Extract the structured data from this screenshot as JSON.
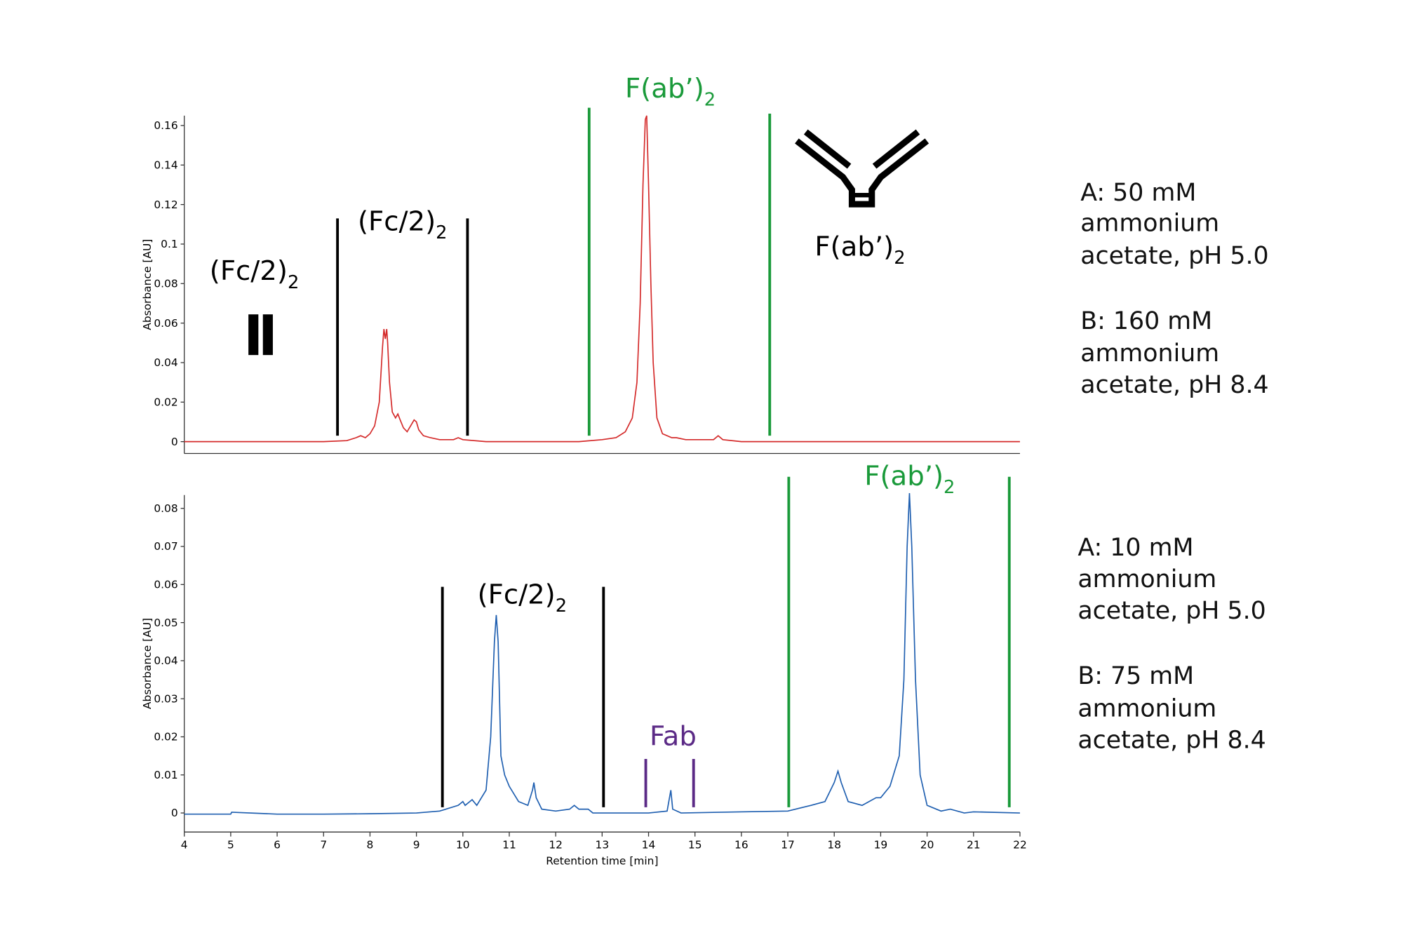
{
  "chart_data": [
    {
      "type": "line",
      "y_label": "Absorbance [AU]",
      "color": "#d42a2a",
      "xlim": [
        4,
        22
      ],
      "ylim": [
        -0.006,
        0.165
      ],
      "yticks": [
        0,
        0.02,
        0.04,
        0.06,
        0.08,
        0.1,
        0.12,
        0.14,
        0.16
      ],
      "x": [
        4,
        5,
        6,
        7,
        7.5,
        7.7,
        7.8,
        7.9,
        8.0,
        8.1,
        8.2,
        8.27,
        8.3,
        8.33,
        8.36,
        8.38,
        8.42,
        8.48,
        8.55,
        8.6,
        8.65,
        8.72,
        8.8,
        8.9,
        8.95,
        9.0,
        9.05,
        9.15,
        9.3,
        9.5,
        9.8,
        9.9,
        10.0,
        10.5,
        11,
        11.5,
        12,
        12.5,
        13,
        13.3,
        13.5,
        13.65,
        13.75,
        13.82,
        13.88,
        13.93,
        13.96,
        14.0,
        14.05,
        14.1,
        14.18,
        14.3,
        14.5,
        14.6,
        14.8,
        15.0,
        15.4,
        15.5,
        15.6,
        16,
        17,
        18,
        19,
        20,
        21,
        22
      ],
      "values": [
        0,
        0,
        0,
        0,
        0.0005,
        0.002,
        0.003,
        0.002,
        0.004,
        0.008,
        0.02,
        0.048,
        0.057,
        0.052,
        0.057,
        0.05,
        0.03,
        0.015,
        0.012,
        0.014,
        0.011,
        0.007,
        0.005,
        0.009,
        0.011,
        0.01,
        0.006,
        0.003,
        0.002,
        0.001,
        0.001,
        0.002,
        0.001,
        0,
        0,
        0,
        0,
        0,
        0.001,
        0.002,
        0.005,
        0.012,
        0.03,
        0.07,
        0.13,
        0.163,
        0.165,
        0.13,
        0.08,
        0.04,
        0.012,
        0.004,
        0.002,
        0.002,
        0.001,
        0.001,
        0.001,
        0.003,
        0.001,
        0,
        0,
        0,
        0,
        0,
        0,
        0
      ],
      "markers": [
        {
          "x": 7.3,
          "y": [
            0.003,
            0.113
          ],
          "color": "#000000"
        },
        {
          "x": 10.1,
          "y": [
            0.003,
            0.113
          ],
          "color": "#000000"
        },
        {
          "x": 12.72,
          "y": [
            0.003,
            0.169
          ],
          "color": "#1a9a3a"
        },
        {
          "x": 16.61,
          "y": [
            0.003,
            0.166
          ],
          "color": "#1a9a3a"
        }
      ],
      "annotations": [
        {
          "text": "(Fc/2)",
          "sub": "2",
          "color": "#000000"
        },
        {
          "text": "F(ab’)",
          "sub": "2",
          "color": "#1a9a3a"
        },
        {
          "text": "(Fc/2)",
          "sub": "2",
          "color": "#000000"
        },
        {
          "text": "F(ab’)",
          "sub": "2",
          "color": "#000000"
        }
      ],
      "conditions": [
        [
          "A: 50 mM",
          "ammonium",
          "acetate, pH 5.0"
        ],
        [
          "B: 160 mM",
          "ammonium",
          "acetate, pH 8.4"
        ]
      ]
    },
    {
      "type": "line",
      "y_label": "Absorbance [AU]",
      "x_label": "Retention time [min]",
      "color": "#1f5fb0",
      "xlim": [
        4,
        22
      ],
      "ylim": [
        -0.005,
        0.0835
      ],
      "xticks": [
        4,
        5,
        6,
        7,
        8,
        9,
        10,
        11,
        12,
        13,
        14,
        15,
        16,
        17,
        18,
        19,
        20,
        21,
        22
      ],
      "yticks": [
        0,
        0.01,
        0.02,
        0.03,
        0.04,
        0.05,
        0.06,
        0.07,
        0.08
      ],
      "x": [
        4,
        5,
        5.02,
        6,
        7,
        8,
        9,
        9.5,
        9.9,
        10.0,
        10.05,
        10.15,
        10.2,
        10.3,
        10.5,
        10.6,
        10.68,
        10.72,
        10.76,
        10.82,
        10.9,
        11.0,
        11.2,
        11.4,
        11.5,
        11.53,
        11.58,
        11.7,
        12.0,
        12.3,
        12.4,
        12.5,
        12.7,
        12.8,
        13,
        14,
        14.4,
        14.48,
        14.52,
        14.7,
        16,
        17,
        17.5,
        17.8,
        18.0,
        18.08,
        18.15,
        18.3,
        18.6,
        18.9,
        19.0,
        19.2,
        19.4,
        19.5,
        19.57,
        19.62,
        19.67,
        19.75,
        19.85,
        20.0,
        20.3,
        20.5,
        20.8,
        21,
        22
      ],
      "values": [
        -0.0003,
        -0.0003,
        0.0002,
        -0.0003,
        -0.0003,
        -0.0002,
        0,
        0.0005,
        0.002,
        0.003,
        0.002,
        0.003,
        0.0035,
        0.002,
        0.006,
        0.02,
        0.045,
        0.052,
        0.045,
        0.015,
        0.01,
        0.007,
        0.003,
        0.002,
        0.006,
        0.008,
        0.004,
        0.001,
        0.0005,
        0.001,
        0.002,
        0.001,
        0.001,
        0,
        0,
        0,
        0.0005,
        0.006,
        0.001,
        0,
        0.0003,
        0.0005,
        0.002,
        0.003,
        0.008,
        0.011,
        0.008,
        0.003,
        0.002,
        0.004,
        0.004,
        0.007,
        0.015,
        0.035,
        0.07,
        0.084,
        0.07,
        0.035,
        0.01,
        0.002,
        0.0005,
        0.001,
        0,
        0.0003,
        0
      ],
      "markers": [
        {
          "x": 9.56,
          "y": [
            0.0015,
            0.0594
          ],
          "color": "#000000"
        },
        {
          "x": 13.03,
          "y": [
            0.0015,
            0.0594
          ],
          "color": "#000000"
        },
        {
          "x": 13.94,
          "y": [
            0.0015,
            0.0142
          ],
          "color": "#5b2a86"
        },
        {
          "x": 14.97,
          "y": [
            0.0015,
            0.0142
          ],
          "color": "#5b2a86"
        },
        {
          "x": 17.02,
          "y": [
            0.0015,
            0.0883
          ],
          "color": "#1a9a3a"
        },
        {
          "x": 21.77,
          "y": [
            0.0015,
            0.0883
          ],
          "color": "#1a9a3a"
        }
      ],
      "annotations": [
        {
          "text": "(Fc/2)",
          "sub": "2",
          "color": "#000000"
        },
        {
          "text": "Fab",
          "color": "#5b2a86"
        },
        {
          "text": "F(ab’)",
          "sub": "2",
          "color": "#1a9a3a"
        }
      ],
      "conditions": [
        [
          "A: 10 mM",
          "ammonium",
          "acetate, pH 5.0"
        ],
        [
          "B: 75 mM",
          "ammonium",
          "acetate, pH 8.4"
        ]
      ]
    }
  ]
}
